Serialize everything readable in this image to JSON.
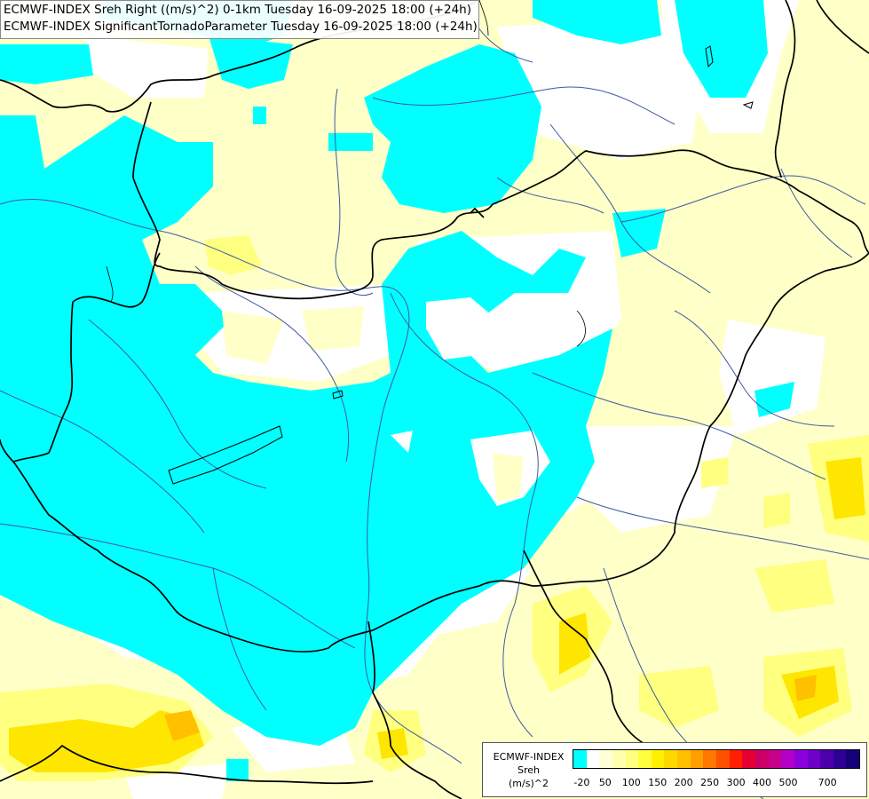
{
  "header": {
    "line1": "ECMWF-INDEX Sreh Right ((m/s)^2) 0-1km Tuesday 16-09-2025 18:00 (+24h)",
    "line2": "ECMWF-INDEX SignificantTornadoParameter Tuesday 16-09-2025 18:00 (+24h)"
  },
  "legend": {
    "title_line1": "ECMWF-INDEX",
    "title_line2": "Sreh",
    "title_line3": "(m/s)^2",
    "colors": [
      "#00ffff",
      "#ffffff",
      "#ffffd8",
      "#ffffb0",
      "#ffff80",
      "#ffff40",
      "#fff000",
      "#ffd800",
      "#ffc000",
      "#ffa000",
      "#ff7800",
      "#ff5000",
      "#ff1e00",
      "#e60032",
      "#cc0066",
      "#c8008c",
      "#b400c8",
      "#8c00dc",
      "#6e00c8",
      "#4b00aa",
      "#2d0096",
      "#140078"
    ],
    "ticks": [
      "-20",
      "50",
      "100",
      "150",
      "200",
      "250",
      "300",
      "400",
      "500",
      "700"
    ]
  },
  "map_colors": {
    "negative": "#00ffff",
    "neutral": "#ffffff",
    "low": "#ffffc8",
    "mid": "#ffff80",
    "high": "#ffe600",
    "peak": "#ffc000",
    "border": "#000000",
    "river": "#3c5aa0"
  }
}
